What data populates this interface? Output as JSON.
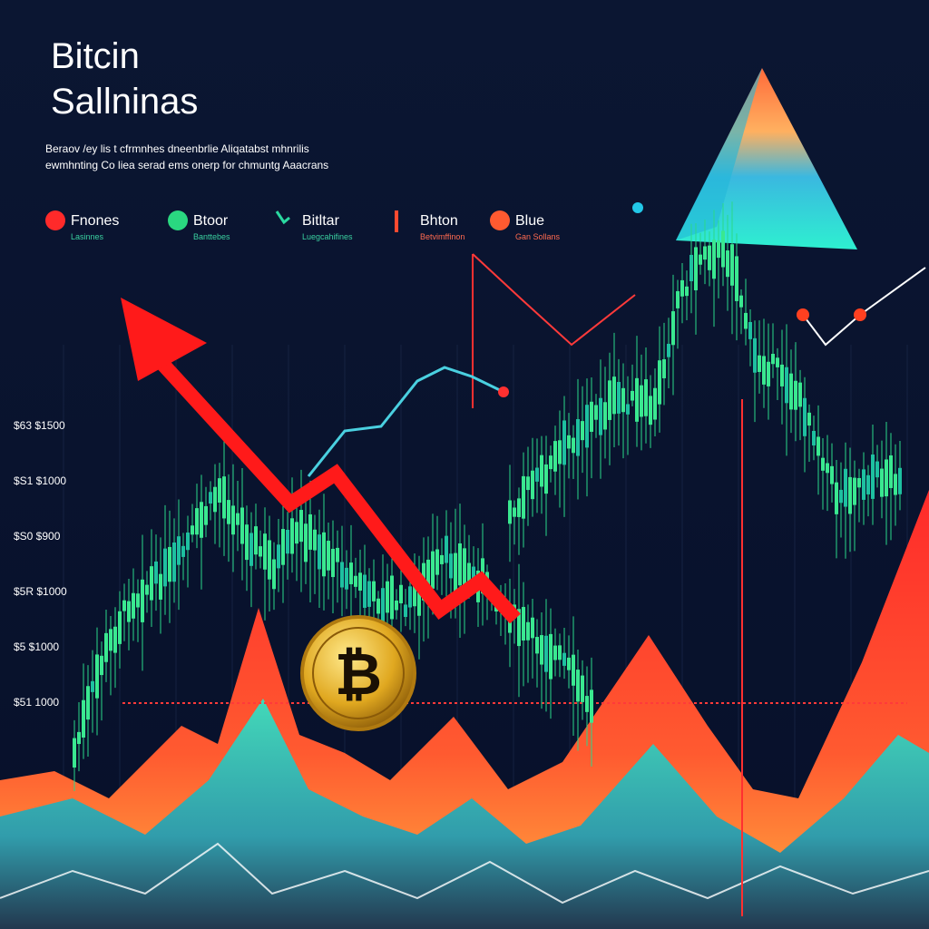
{
  "header": {
    "title_lines": [
      "Bitcin",
      "Sallninas"
    ],
    "subtitle_lines": [
      "Beraov /ey lis t cfrmnhes dneenbrlie Aliqatabst mhnrilis",
      "ewmhnting Co liea serad ems onerp for chmuntg Aaacrans"
    ]
  },
  "legend": [
    {
      "name": "Fnones",
      "sub": "Lasinnes"
    },
    {
      "name": "Btoor",
      "sub": "Banttebes"
    },
    {
      "name": "Bitltar",
      "sub": "Luegcahifines"
    },
    {
      "name": "Bhton",
      "sub": "Betvimffinon"
    },
    {
      "name": "Blue",
      "sub": "Gan Sollans"
    }
  ],
  "axis_labels": [
    "$63 $1500",
    "$S1 $1000",
    "$S0 $900",
    "$5R $1000",
    "$5 $1000",
    "$51 1000"
  ],
  "coin_symbol": "₿"
}
